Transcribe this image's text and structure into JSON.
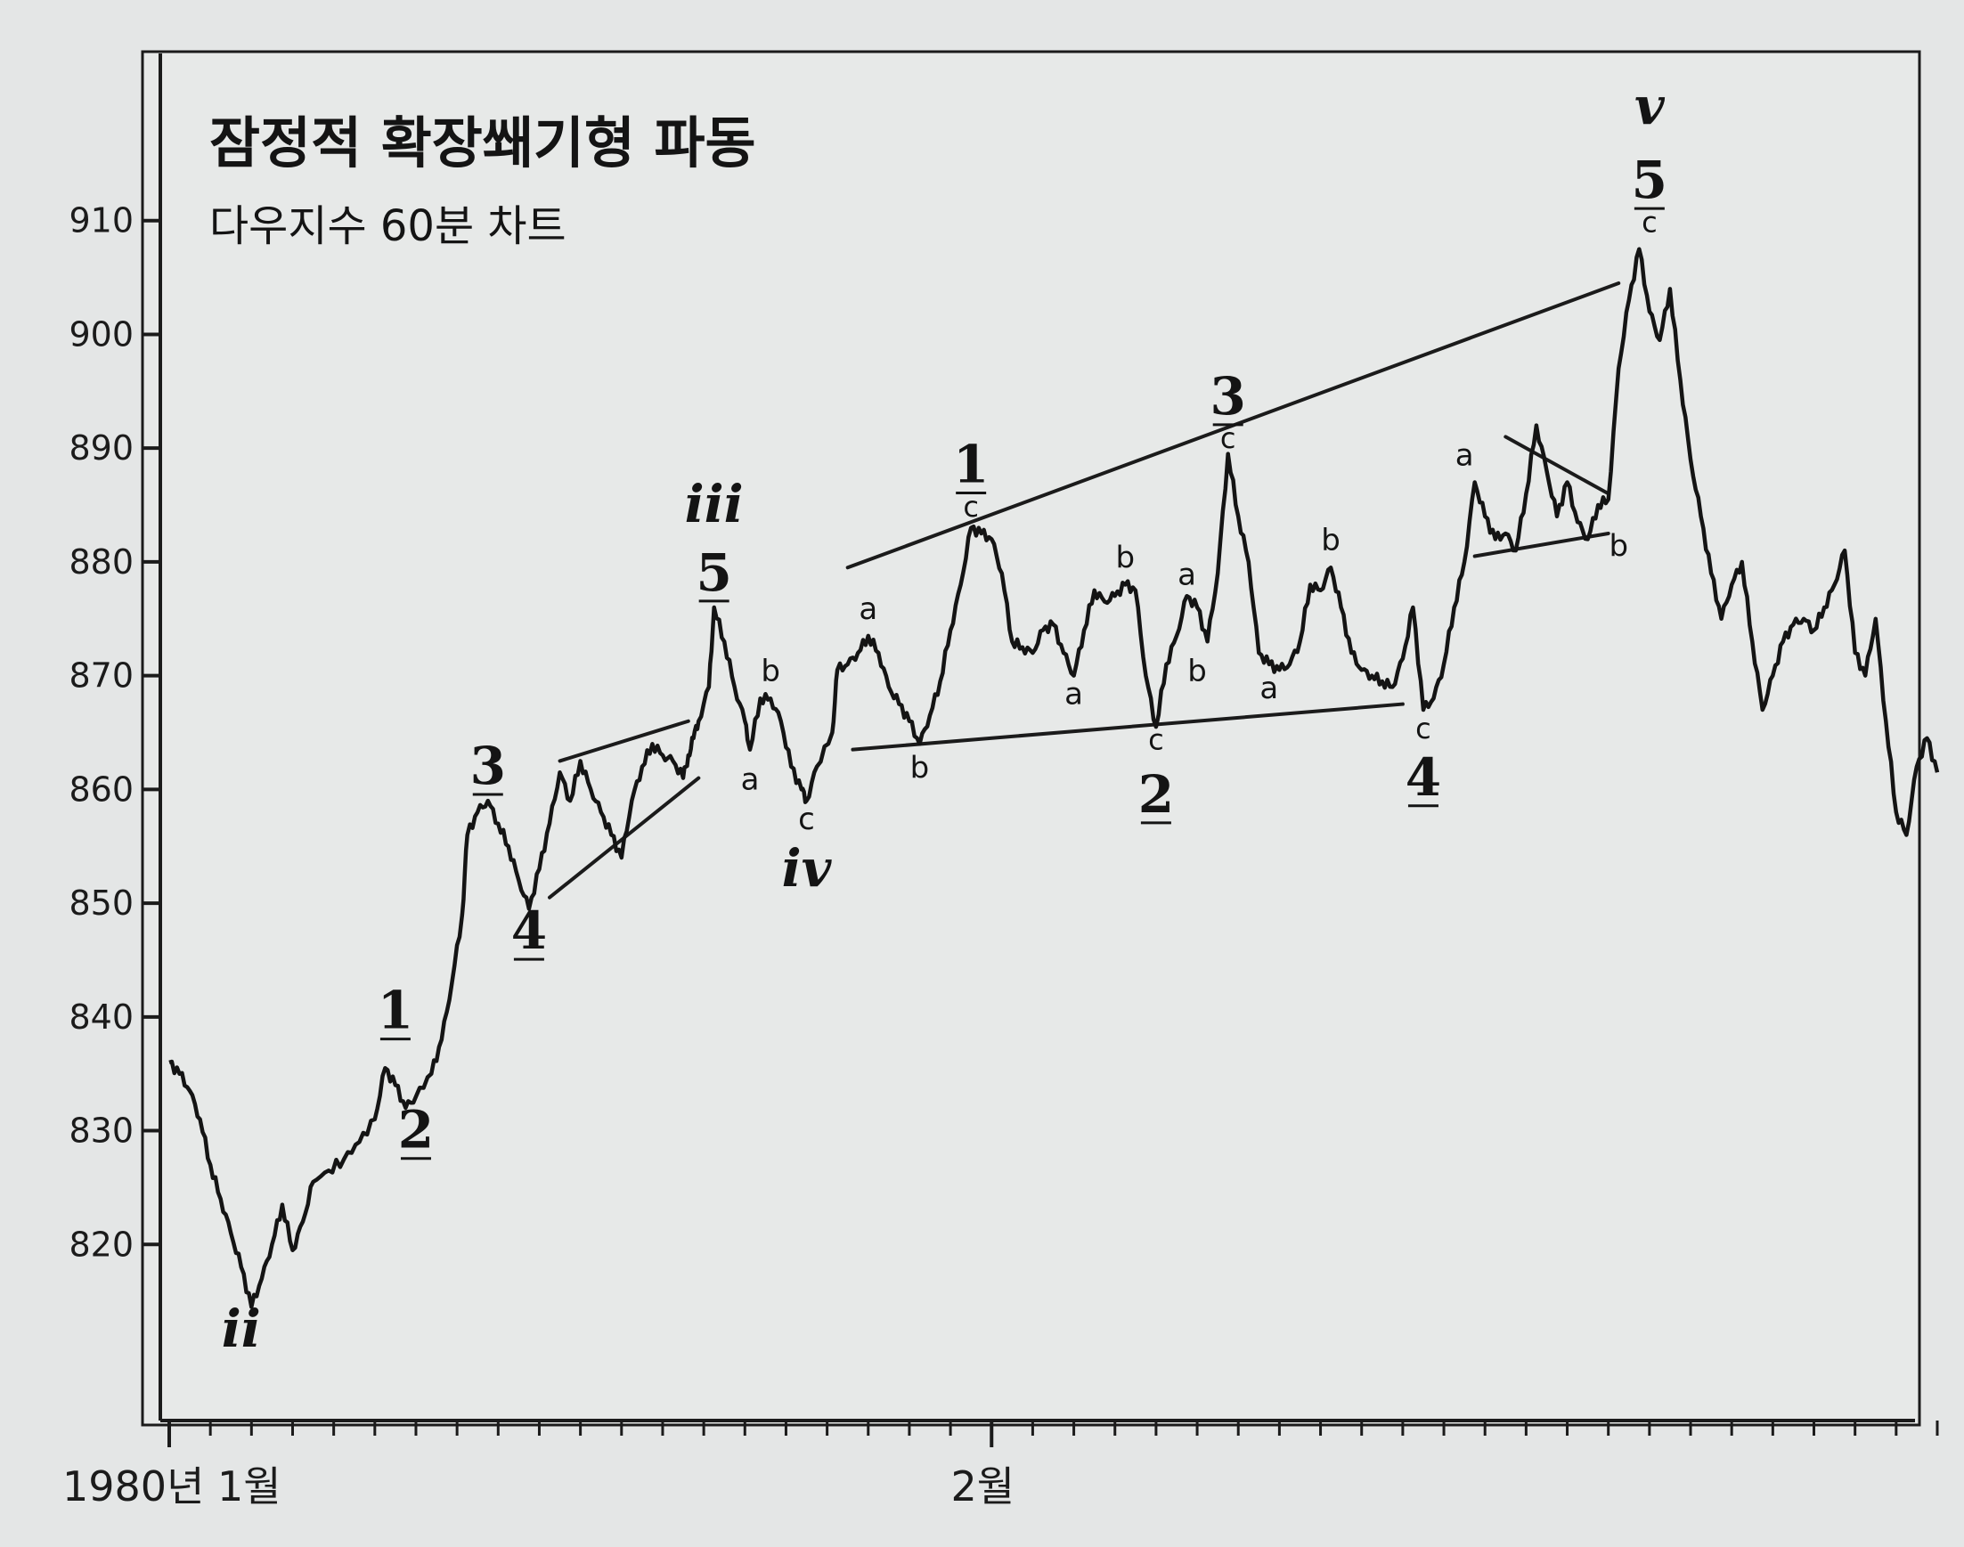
{
  "chart_data": {
    "type": "line",
    "title": "잠정적 확장쐐기형 파동",
    "subtitle": "다우지수 60분 차트",
    "xlabel": "",
    "ylabel": "",
    "ylim": [
      810,
      920
    ],
    "yticks": [
      820,
      830,
      840,
      850,
      860,
      870,
      880,
      890,
      900,
      910
    ],
    "xtick_labels": [
      {
        "label": "1980년 1월",
        "bar": 0
      },
      {
        "label": "2월",
        "bar": 160
      }
    ],
    "grid": false,
    "series": [
      {
        "values": [
          [
            0,
            836
          ],
          [
            2,
            835
          ],
          [
            4,
            833.5
          ],
          [
            6,
            831
          ],
          [
            8,
            827
          ],
          [
            10,
            824
          ],
          [
            12,
            821
          ],
          [
            14,
            818
          ],
          [
            16,
            814.5
          ],
          [
            18,
            817
          ],
          [
            20,
            820
          ],
          [
            22,
            823.5
          ],
          [
            24,
            819.5
          ],
          [
            26,
            822
          ],
          [
            28,
            825.5
          ],
          [
            31,
            826.5
          ],
          [
            34,
            827.5
          ],
          [
            37,
            829
          ],
          [
            40,
            831
          ],
          [
            42,
            835.5
          ],
          [
            44,
            834
          ],
          [
            46,
            832
          ],
          [
            48,
            833
          ],
          [
            51,
            835
          ],
          [
            53,
            838
          ],
          [
            55,
            843
          ],
          [
            57,
            849
          ],
          [
            58,
            856
          ],
          [
            60,
            858
          ],
          [
            62,
            859
          ],
          [
            64,
            857
          ],
          [
            66,
            855
          ],
          [
            68,
            852
          ],
          [
            70,
            849.5
          ],
          [
            72,
            853
          ],
          [
            74,
            857
          ],
          [
            76,
            861.5
          ],
          [
            78,
            859
          ],
          [
            80,
            862.5
          ],
          [
            82,
            860
          ],
          [
            84,
            858
          ],
          [
            86,
            856
          ],
          [
            88,
            854
          ],
          [
            90,
            859
          ],
          [
            92,
            862
          ],
          [
            94,
            864
          ],
          [
            96,
            863
          ],
          [
            98,
            862.5
          ],
          [
            100,
            861
          ],
          [
            101,
            863
          ],
          [
            102,
            864.5
          ],
          [
            103,
            866
          ],
          [
            105,
            869
          ],
          [
            106,
            876
          ],
          [
            108,
            873
          ],
          [
            110,
            869
          ],
          [
            112,
            866
          ],
          [
            113,
            863.5
          ],
          [
            115,
            868
          ],
          [
            117,
            868
          ],
          [
            119,
            866
          ],
          [
            121,
            862
          ],
          [
            123,
            860
          ],
          [
            124,
            859
          ],
          [
            126,
            862
          ],
          [
            129,
            865
          ],
          [
            130,
            870.5
          ],
          [
            132,
            871
          ],
          [
            134,
            872
          ],
          [
            136,
            873.5
          ],
          [
            138,
            872
          ],
          [
            140,
            869
          ],
          [
            142,
            867.5
          ],
          [
            144,
            866
          ],
          [
            146,
            864
          ],
          [
            148,
            866.5
          ],
          [
            150,
            869.5
          ],
          [
            152,
            874
          ],
          [
            154,
            878
          ],
          [
            156,
            883
          ],
          [
            158,
            882.5
          ],
          [
            160,
            882
          ],
          [
            162,
            879
          ],
          [
            164,
            873
          ],
          [
            166,
            872.5
          ],
          [
            168,
            872
          ],
          [
            170,
            874
          ],
          [
            172,
            874.5
          ],
          [
            174,
            872
          ],
          [
            176,
            870
          ],
          [
            178,
            874
          ],
          [
            180,
            877.5
          ],
          [
            182,
            876.5
          ],
          [
            184,
            877
          ],
          [
            186,
            878
          ],
          [
            188,
            877.5
          ],
          [
            190,
            870
          ],
          [
            192,
            865.5
          ],
          [
            194,
            871
          ],
          [
            196,
            873.5
          ],
          [
            198,
            877
          ],
          [
            200,
            876
          ],
          [
            202,
            873
          ],
          [
            204,
            879
          ],
          [
            206,
            889.5
          ],
          [
            208,
            884
          ],
          [
            210,
            880
          ],
          [
            212,
            872
          ],
          [
            214,
            871
          ],
          [
            216,
            870.5
          ],
          [
            218,
            871
          ],
          [
            220,
            873
          ],
          [
            222,
            878
          ],
          [
            224,
            877.5
          ],
          [
            226,
            879.5
          ],
          [
            228,
            876
          ],
          [
            230,
            872
          ],
          [
            232,
            870.5
          ],
          [
            234,
            870
          ],
          [
            236,
            869.5
          ],
          [
            238,
            869
          ],
          [
            240,
            871.5
          ],
          [
            242,
            876
          ],
          [
            244,
            867
          ],
          [
            246,
            868
          ],
          [
            248,
            871
          ],
          [
            250,
            876
          ],
          [
            252,
            880
          ],
          [
            254,
            887
          ],
          [
            256,
            884
          ],
          [
            258,
            882
          ],
          [
            260,
            882.5
          ],
          [
            262,
            881
          ],
          [
            264,
            886
          ],
          [
            266,
            892
          ],
          [
            268,
            888
          ],
          [
            270,
            884
          ],
          [
            272,
            887
          ],
          [
            274,
            883.5
          ],
          [
            276,
            882
          ],
          [
            278,
            885
          ],
          [
            280,
            885.5
          ],
          [
            282,
            897
          ],
          [
            284,
            903
          ],
          [
            286,
            907.5
          ],
          [
            288,
            902
          ],
          [
            290,
            899.5
          ],
          [
            292,
            904
          ],
          [
            294,
            896
          ],
          [
            296,
            889
          ],
          [
            298,
            884
          ],
          [
            300,
            879
          ],
          [
            302,
            875
          ],
          [
            304,
            878
          ],
          [
            306,
            880
          ],
          [
            308,
            873
          ],
          [
            310,
            867
          ],
          [
            312,
            870
          ],
          [
            314,
            873
          ],
          [
            316,
            874.5
          ],
          [
            318,
            875
          ],
          [
            320,
            874
          ],
          [
            322,
            876
          ],
          [
            324,
            878
          ],
          [
            326,
            881
          ],
          [
            328,
            872
          ],
          [
            330,
            870
          ],
          [
            332,
            875
          ],
          [
            334,
            866
          ],
          [
            336,
            858
          ],
          [
            338,
            856
          ],
          [
            340,
            862
          ],
          [
            342,
            864.5
          ],
          [
            344,
            861.5
          ]
        ]
      }
    ],
    "trendlines": [
      {
        "from": [
          132,
          879.5
        ],
        "to": [
          282,
          904.5
        ]
      },
      {
        "from": [
          133,
          863.5
        ],
        "to": [
          240,
          867.5
        ]
      },
      {
        "from": [
          76,
          862.5
        ],
        "to": [
          101,
          866
        ]
      },
      {
        "from": [
          74,
          850.5
        ],
        "to": [
          103,
          861
        ]
      },
      {
        "from": [
          260,
          891
        ],
        "to": [
          280,
          886
        ]
      },
      {
        "from": [
          254,
          880.5
        ],
        "to": [
          280,
          882.5
        ]
      }
    ],
    "annotations": [
      {
        "text": "ii",
        "style": "roman",
        "x": 14,
        "y": 811
      },
      {
        "text": "1",
        "style": "numeral",
        "x": 44,
        "y": 839
      },
      {
        "text": "2",
        "style": "numeral",
        "x": 48,
        "y": 828.5
      },
      {
        "text": "3",
        "style": "numeral",
        "x": 62,
        "y": 860.5
      },
      {
        "text": "4",
        "style": "numeral",
        "x": 70,
        "y": 846
      },
      {
        "text": "iii",
        "style": "roman",
        "x": 106,
        "y": 883.5
      },
      {
        "text": "5",
        "style": "numeral",
        "x": 106,
        "y": 877.5
      },
      {
        "text": "a",
        "style": "small",
        "x": 113,
        "y": 860
      },
      {
        "text": "b",
        "style": "small",
        "x": 117,
        "y": 869.5
      },
      {
        "text": "c",
        "style": "small",
        "x": 124,
        "y": 856.5
      },
      {
        "text": "iv",
        "style": "roman",
        "x": 124,
        "y": 851.5
      },
      {
        "text": "a",
        "style": "small",
        "x": 136,
        "y": 875
      },
      {
        "text": "b",
        "style": "small",
        "x": 146,
        "y": 861
      },
      {
        "text": "1",
        "style": "numeral",
        "x": 156,
        "y": 887
      },
      {
        "text": "c",
        "style": "sub",
        "x": 156,
        "y": 884
      },
      {
        "text": "a",
        "style": "small",
        "x": 176,
        "y": 867.5
      },
      {
        "text": "b",
        "style": "small",
        "x": 186,
        "y": 879.5
      },
      {
        "text": "c",
        "style": "sub",
        "x": 192,
        "y": 863.5
      },
      {
        "text": "2",
        "style": "numeral",
        "x": 192,
        "y": 858
      },
      {
        "text": "a",
        "style": "small",
        "x": 198,
        "y": 878
      },
      {
        "text": "b",
        "style": "small",
        "x": 200,
        "y": 869.5
      },
      {
        "text": "3",
        "style": "numeral",
        "x": 206,
        "y": 893
      },
      {
        "text": "c",
        "style": "sub",
        "x": 206,
        "y": 890
      },
      {
        "text": "a",
        "style": "small",
        "x": 214,
        "y": 868
      },
      {
        "text": "b",
        "style": "small",
        "x": 226,
        "y": 881
      },
      {
        "text": "c",
        "style": "sub",
        "x": 244,
        "y": 864.5
      },
      {
        "text": "4",
        "style": "numeral",
        "x": 244,
        "y": 859.5
      },
      {
        "text": "a",
        "style": "small",
        "x": 252,
        "y": 888.5
      },
      {
        "text": "b",
        "style": "small",
        "x": 282,
        "y": 880.5
      },
      {
        "text": "v",
        "style": "roman",
        "x": 288,
        "y": 918.5
      },
      {
        "text": "5",
        "style": "numeral",
        "x": 288,
        "y": 912
      },
      {
        "text": "c",
        "style": "sub",
        "x": 288,
        "y": 909
      }
    ]
  }
}
